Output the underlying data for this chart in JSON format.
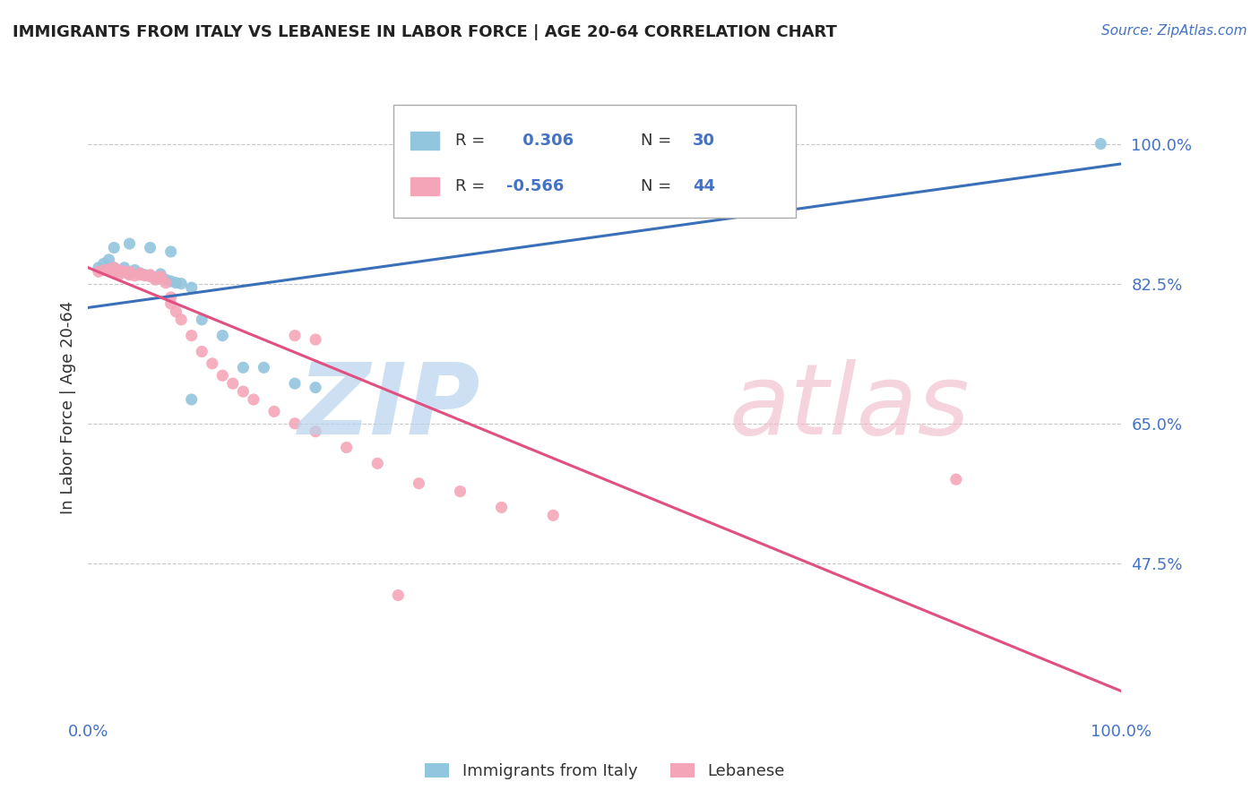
{
  "title": "IMMIGRANTS FROM ITALY VS LEBANESE IN LABOR FORCE | AGE 20-64 CORRELATION CHART",
  "source_text": "Source: ZipAtlas.com",
  "ylabel": "In Labor Force | Age 20-64",
  "legend_r1": "R =  0.306",
  "legend_n1": "N = 30",
  "legend_r2": "R = -0.566",
  "legend_n2": "N = 44",
  "legend_label1": "Immigrants from Italy",
  "legend_label2": "Lebanese",
  "blue_color": "#92c5de",
  "pink_color": "#f4a6b8",
  "blue_line_color": "#3a6fba",
  "pink_line_color": "#e05080",
  "title_color": "#222222",
  "axis_color": "#4472c4",
  "grid_color": "#c8c8c8",
  "xlim": [
    0.0,
    1.0
  ],
  "ylim": [
    0.28,
    1.06
  ],
  "yticks": [
    0.475,
    0.65,
    0.825,
    1.0
  ],
  "ytick_labels": [
    "47.5%",
    "65.0%",
    "82.5%",
    "100.0%"
  ],
  "xtick_labels": [
    "0.0%",
    "100.0%"
  ],
  "blue_scatter_x": [
    0.01,
    0.015,
    0.02,
    0.025,
    0.03,
    0.035,
    0.04,
    0.045,
    0.05,
    0.055,
    0.06,
    0.065,
    0.07,
    0.075,
    0.08,
    0.085,
    0.09,
    0.1,
    0.11,
    0.13,
    0.15,
    0.17,
    0.2,
    0.22,
    0.025,
    0.04,
    0.06,
    0.08,
    0.1,
    0.98
  ],
  "blue_scatter_y": [
    0.845,
    0.85,
    0.855,
    0.845,
    0.84,
    0.845,
    0.838,
    0.842,
    0.838,
    0.836,
    0.835,
    0.832,
    0.837,
    0.83,
    0.828,
    0.826,
    0.825,
    0.82,
    0.78,
    0.76,
    0.72,
    0.72,
    0.7,
    0.695,
    0.87,
    0.875,
    0.87,
    0.865,
    0.68,
    1.0
  ],
  "pink_scatter_x": [
    0.01,
    0.015,
    0.02,
    0.025,
    0.025,
    0.03,
    0.03,
    0.035,
    0.04,
    0.04,
    0.045,
    0.05,
    0.05,
    0.055,
    0.06,
    0.06,
    0.065,
    0.07,
    0.07,
    0.075,
    0.08,
    0.08,
    0.085,
    0.09,
    0.1,
    0.11,
    0.12,
    0.13,
    0.14,
    0.15,
    0.16,
    0.18,
    0.2,
    0.22,
    0.25,
    0.28,
    0.32,
    0.36,
    0.4,
    0.45,
    0.2,
    0.22,
    0.84,
    0.3
  ],
  "pink_scatter_y": [
    0.84,
    0.842,
    0.843,
    0.845,
    0.838,
    0.842,
    0.836,
    0.84,
    0.836,
    0.84,
    0.835,
    0.836,
    0.838,
    0.835,
    0.834,
    0.836,
    0.83,
    0.832,
    0.834,
    0.826,
    0.8,
    0.808,
    0.79,
    0.78,
    0.76,
    0.74,
    0.725,
    0.71,
    0.7,
    0.69,
    0.68,
    0.665,
    0.65,
    0.64,
    0.62,
    0.6,
    0.575,
    0.565,
    0.545,
    0.535,
    0.76,
    0.755,
    0.58,
    0.435
  ],
  "blue_trend": [
    0.0,
    1.0,
    0.795,
    0.975
  ],
  "pink_trend": [
    0.0,
    1.0,
    0.845,
    0.315
  ]
}
